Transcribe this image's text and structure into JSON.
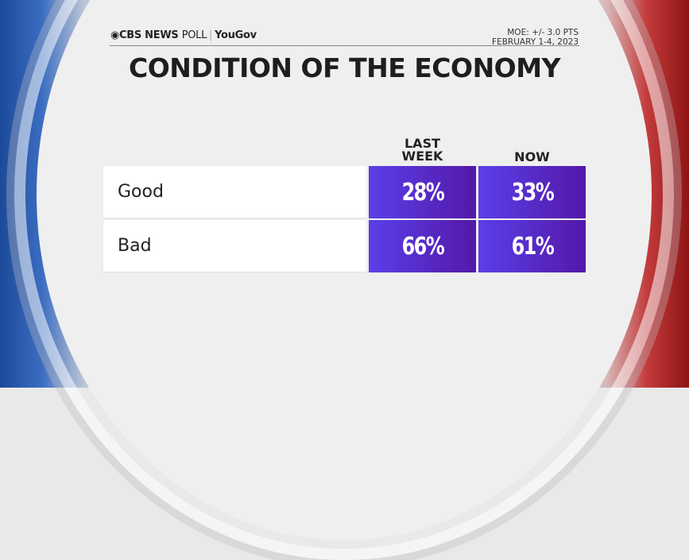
{
  "header": {
    "brand": "CBS NEWS",
    "brand_suffix": "POLL",
    "partner": "YouGov",
    "moe": "MOE: +/- 3.0 PTS",
    "dates": "FEBRUARY 1-4, 2023"
  },
  "title": "CONDITION OF THE ECONOMY",
  "table": {
    "columns": [
      "LAST WEEK",
      "NOW"
    ],
    "rows": [
      {
        "label": "Good",
        "values": [
          "28%",
          "33%"
        ]
      },
      {
        "label": "Bad",
        "values": [
          "66%",
          "61%"
        ]
      }
    ]
  },
  "colors": {
    "cell_start": "#5a3fe8",
    "cell_end": "#5418a8",
    "left_ring": "#1c4a9a",
    "right_ring": "#c23a3a"
  }
}
